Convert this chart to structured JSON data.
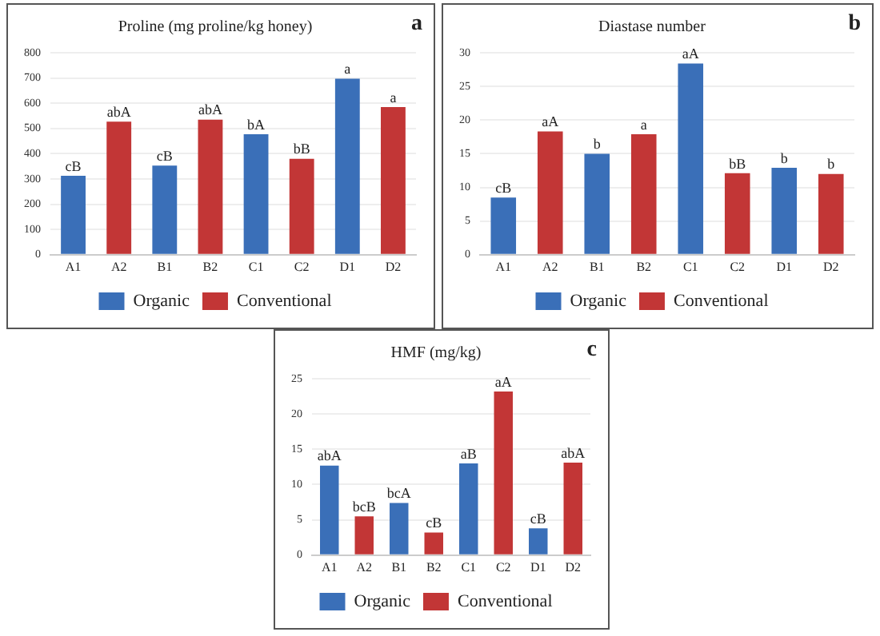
{
  "chart_data": [
    {
      "type": "bar",
      "title": "Proline (mg proline/kg honey)",
      "annotations": [
        "a"
      ],
      "categories": [
        "A1",
        "A2",
        "B1",
        "B2",
        "C1",
        "C2",
        "D1",
        "D2"
      ],
      "series": [
        {
          "name": "Organic",
          "color": "#3a6fb8",
          "values": [
            313,
            null,
            353,
            null,
            477,
            null,
            697,
            null
          ],
          "value_labels": [
            "cB",
            null,
            "cB",
            null,
            "bA",
            null,
            "a",
            null
          ]
        },
        {
          "name": "Conventional",
          "color": "#c23636",
          "values": [
            null,
            527,
            null,
            535,
            null,
            380,
            null,
            585
          ],
          "value_labels": [
            null,
            "abA",
            null,
            "abA",
            null,
            "bB",
            null,
            "a"
          ]
        }
      ],
      "ylim": [
        0,
        800
      ],
      "yticks": [
        0,
        100,
        200,
        300,
        400,
        500,
        600,
        700,
        800
      ],
      "grid": "y",
      "legend": "bottom"
    },
    {
      "type": "bar",
      "title": "Diastase number",
      "annotations": [
        "b"
      ],
      "categories": [
        "A1",
        "A2",
        "B1",
        "B2",
        "C1",
        "C2",
        "D1",
        "D2"
      ],
      "series": [
        {
          "name": "Organic",
          "color": "#3a6fb8",
          "values": [
            8.5,
            null,
            15,
            null,
            28.4,
            null,
            12.9,
            null
          ],
          "value_labels": [
            "cB",
            null,
            "b",
            null,
            "aA",
            null,
            "b",
            null
          ]
        },
        {
          "name": "Conventional",
          "color": "#c23636",
          "values": [
            null,
            18.3,
            null,
            17.9,
            null,
            12.1,
            null,
            12
          ],
          "value_labels": [
            null,
            "aA",
            null,
            "a",
            null,
            "bB",
            null,
            "b"
          ]
        }
      ],
      "ylim": [
        0,
        30
      ],
      "yticks": [
        0,
        5,
        10,
        15,
        20,
        25,
        30
      ],
      "grid": "y",
      "legend": "bottom"
    },
    {
      "type": "bar",
      "title": "HMF (mg/kg)",
      "annotations": [
        "c"
      ],
      "categories": [
        "A1",
        "A2",
        "B1",
        "B2",
        "C1",
        "C2",
        "D1",
        "D2"
      ],
      "series": [
        {
          "name": "Organic",
          "color": "#3a6fb8",
          "values": [
            12.7,
            null,
            7.4,
            null,
            13,
            null,
            3.8,
            null
          ],
          "value_labels": [
            "abA",
            null,
            "bcA",
            null,
            "aB",
            null,
            "cB",
            null
          ]
        },
        {
          "name": "Conventional",
          "color": "#c23636",
          "values": [
            null,
            5.5,
            null,
            3.2,
            null,
            23.2,
            null,
            13.1
          ],
          "value_labels": [
            null,
            "bcB",
            null,
            "cB",
            null,
            "aA",
            null,
            "abA"
          ]
        }
      ],
      "ylim": [
        0,
        25
      ],
      "yticks": [
        0,
        5,
        10,
        15,
        20,
        25
      ],
      "grid": "y",
      "legend": "bottom"
    }
  ]
}
